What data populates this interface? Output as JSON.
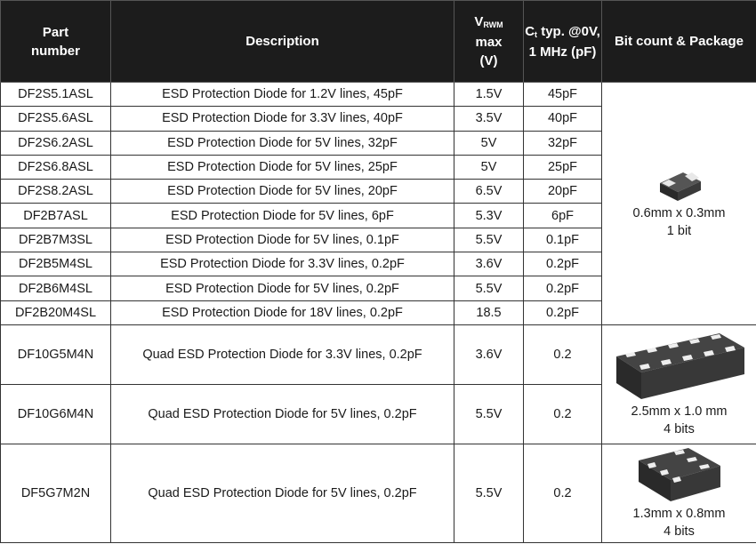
{
  "headers": {
    "part": "Part number",
    "description": "Description",
    "vrwm_main": "V",
    "vrwm_sub": "RWM",
    "vrwm_rest": "max (V)",
    "ct_main": "C",
    "ct_sub": "t",
    "ct_rest": "typ. @0V, 1 MHz (pF)",
    "package": "Bit count & Package"
  },
  "rows": [
    {
      "part": "DF2S5.1ASL",
      "desc": "ESD Protection Diode for 1.2V lines, 45pF",
      "vrwm": "1.5V",
      "ct": "45pF"
    },
    {
      "part": "DF2S5.6ASL",
      "desc": "ESD Protection Diode for 3.3V lines, 40pF",
      "vrwm": "3.5V",
      "ct": "40pF"
    },
    {
      "part": "DF2S6.2ASL",
      "desc": "ESD Protection Diode for 5V lines, 32pF",
      "vrwm": "5V",
      "ct": "32pF"
    },
    {
      "part": "DF2S6.8ASL",
      "desc": "ESD Protection Diode for 5V lines, 25pF",
      "vrwm": "5V",
      "ct": "25pF"
    },
    {
      "part": "DF2S8.2ASL",
      "desc": "ESD Protection Diode for 5V lines, 20pF",
      "vrwm": "6.5V",
      "ct": "20pF"
    },
    {
      "part": "DF2B7ASL",
      "desc": "ESD Protection Diode for 5V lines, 6pF",
      "vrwm": "5.3V",
      "ct": "6pF"
    },
    {
      "part": "DF2B7M3SL",
      "desc": "ESD Protection Diode for 5V lines, 0.1pF",
      "vrwm": "5.5V",
      "ct": "0.1pF"
    },
    {
      "part": "DF2B5M4SL",
      "desc": "ESD Protection Diode for 3.3V lines, 0.2pF",
      "vrwm": "3.6V",
      "ct": "0.2pF"
    },
    {
      "part": "DF2B6M4SL",
      "desc": "ESD Protection Diode for 5V lines, 0.2pF",
      "vrwm": "5.5V",
      "ct": "0.2pF"
    },
    {
      "part": "DF2B20M4SL",
      "desc": "ESD Protection Diode for 18V lines, 0.2pF",
      "vrwm": "18.5",
      "ct": "0.2pF"
    },
    {
      "part": "DF10G5M4N",
      "desc": "Quad ESD Protection Diode for 3.3V lines, 0.2pF",
      "vrwm": "3.6V",
      "ct": "0.2"
    },
    {
      "part": "DF10G6M4N",
      "desc": "Quad ESD Protection Diode for 5V lines, 0.2pF",
      "vrwm": "5.5V",
      "ct": "0.2"
    },
    {
      "part": "DF5G7M2N",
      "desc": "Quad ESD Protection Diode for 5V lines, 0.2pF",
      "vrwm": "5.5V",
      "ct": "0.2"
    }
  ],
  "packages": [
    {
      "size": "0.6mm x 0.3mm",
      "bits": "1 bit",
      "icon": "2-pin-chip-package-icon"
    },
    {
      "size": "2.5mm x 1.0 mm",
      "bits": "4 bits",
      "icon": "10-pin-chip-package-icon"
    },
    {
      "size": "1.3mm x 0.8mm",
      "bits": "4 bits",
      "icon": "6-pin-chip-package-icon"
    }
  ],
  "colors": {
    "header_bg": "#1c1c1c",
    "header_text": "#ffffff",
    "chip_body": "#333333",
    "chip_pad": "#e8e8e8"
  }
}
